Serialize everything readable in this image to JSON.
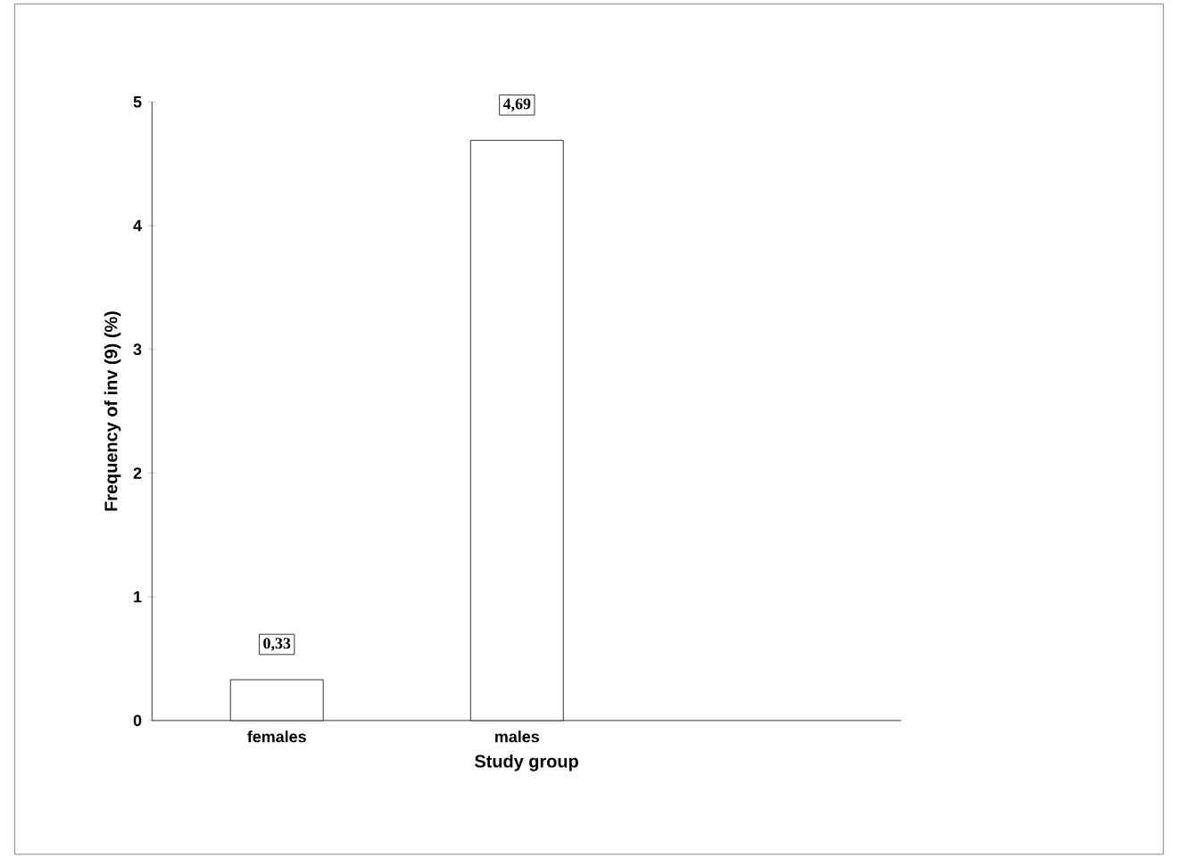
{
  "chart_data": {
    "type": "bar",
    "xlabel": "Study group",
    "ylabel": "Frequency of inv (9) (%)",
    "categories": [
      "females",
      "males",
      null
    ],
    "values": [
      0.33,
      4.69,
      null
    ],
    "value_labels": [
      "0,33",
      "4,69",
      null
    ],
    "color": "#ffffff",
    "ylim": [
      0,
      5
    ],
    "yticks": [
      0,
      1,
      2,
      3,
      4,
      5
    ]
  }
}
